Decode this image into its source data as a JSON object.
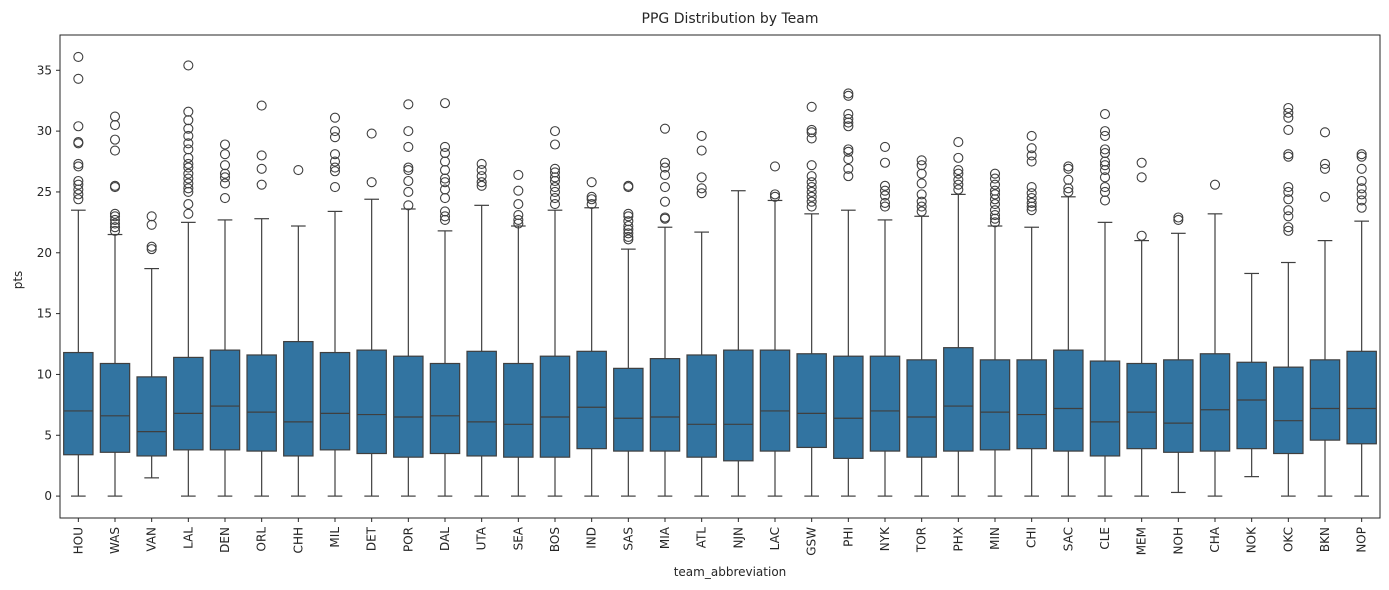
{
  "chart_data": {
    "type": "box",
    "title": "PPG Distribution by Team",
    "xlabel": "team_abbreviation",
    "ylabel": "pts",
    "ylim": [
      -1.8,
      37.9
    ],
    "yticks": [
      0,
      5,
      10,
      15,
      20,
      25,
      30,
      35
    ],
    "box_color": "#3274a1",
    "line_color": "#3f3f3f",
    "teams": [
      {
        "name": "HOU",
        "q1": 3.4,
        "median": 7.0,
        "q3": 11.8,
        "wlow": 0,
        "whigh": 23.5,
        "outliers": [
          24.4,
          24.8,
          25.2,
          25.6,
          25.9,
          27.1,
          27.3,
          29.0,
          29.1,
          30.4,
          34.3,
          36.1
        ]
      },
      {
        "name": "WAS",
        "q1": 3.6,
        "median": 6.6,
        "q3": 10.9,
        "wlow": 0,
        "whigh": 21.5,
        "outliers": [
          21.8,
          22.1,
          22.4,
          22.7,
          23.0,
          23.2,
          25.4,
          25.5,
          28.4,
          29.3,
          30.5,
          31.2
        ]
      },
      {
        "name": "VAN",
        "q1": 3.3,
        "median": 5.3,
        "q3": 9.8,
        "wlow": 1.5,
        "whigh": 18.7,
        "outliers": [
          20.3,
          20.5,
          22.3,
          23.0
        ]
      },
      {
        "name": "LAL",
        "q1": 3.8,
        "median": 6.8,
        "q3": 11.4,
        "wlow": 0,
        "whigh": 22.5,
        "outliers": [
          23.2,
          24.0,
          25.0,
          25.3,
          25.7,
          26.1,
          26.5,
          27.0,
          27.3,
          27.8,
          28.5,
          29.0,
          29.6,
          30.2,
          30.9,
          31.6,
          35.4
        ]
      },
      {
        "name": "DEN",
        "q1": 3.8,
        "median": 7.4,
        "q3": 12.0,
        "wlow": 0,
        "whigh": 22.7,
        "outliers": [
          24.5,
          25.7,
          26.2,
          26.5,
          27.2,
          28.1,
          28.9
        ]
      },
      {
        "name": "ORL",
        "q1": 3.7,
        "median": 6.9,
        "q3": 11.6,
        "wlow": 0,
        "whigh": 22.8,
        "outliers": [
          25.6,
          26.9,
          28.0,
          32.1
        ]
      },
      {
        "name": "CHH",
        "q1": 3.3,
        "median": 6.1,
        "q3": 12.7,
        "wlow": 0,
        "whigh": 22.2,
        "outliers": [
          26.8
        ]
      },
      {
        "name": "MIL",
        "q1": 3.8,
        "median": 6.8,
        "q3": 11.8,
        "wlow": 0,
        "whigh": 23.4,
        "outliers": [
          25.4,
          26.7,
          27.0,
          27.5,
          28.1,
          29.5,
          30.0,
          31.1
        ]
      },
      {
        "name": "DET",
        "q1": 3.5,
        "median": 6.7,
        "q3": 12.0,
        "wlow": 0,
        "whigh": 24.4,
        "outliers": [
          25.8,
          29.8
        ]
      },
      {
        "name": "POR",
        "q1": 3.2,
        "median": 6.5,
        "q3": 11.5,
        "wlow": 0,
        "whigh": 23.6,
        "outliers": [
          23.9,
          25.0,
          25.9,
          26.8,
          27.0,
          28.7,
          30.0,
          32.2
        ]
      },
      {
        "name": "DAL",
        "q1": 3.5,
        "median": 6.6,
        "q3": 10.9,
        "wlow": 0,
        "whigh": 21.8,
        "outliers": [
          22.7,
          23.0,
          23.4,
          24.5,
          25.2,
          25.8,
          26.1,
          26.8,
          27.5,
          28.2,
          28.7,
          32.3
        ]
      },
      {
        "name": "UTA",
        "q1": 3.3,
        "median": 6.1,
        "q3": 11.9,
        "wlow": 0,
        "whigh": 23.9,
        "outliers": [
          25.5,
          25.8,
          26.3,
          26.8,
          27.3
        ]
      },
      {
        "name": "SEA",
        "q1": 3.2,
        "median": 5.9,
        "q3": 10.9,
        "wlow": 0,
        "whigh": 22.2,
        "outliers": [
          22.4,
          22.7,
          23.1,
          24.0,
          25.1,
          26.4
        ]
      },
      {
        "name": "BOS",
        "q1": 3.2,
        "median": 6.5,
        "q3": 11.5,
        "wlow": 0,
        "whigh": 23.5,
        "outliers": [
          24.0,
          24.5,
          25.0,
          25.4,
          25.9,
          26.2,
          26.6,
          26.9,
          28.9,
          30.0
        ]
      },
      {
        "name": "IND",
        "q1": 3.9,
        "median": 7.3,
        "q3": 11.9,
        "wlow": 0,
        "whigh": 23.7,
        "outliers": [
          24.0,
          24.4,
          24.6,
          25.8
        ]
      },
      {
        "name": "SAS",
        "q1": 3.7,
        "median": 6.4,
        "q3": 10.5,
        "wlow": 0,
        "whigh": 20.3,
        "outliers": [
          21.1,
          21.3,
          21.6,
          21.9,
          22.2,
          22.6,
          23.0,
          23.2,
          25.4,
          25.5
        ]
      },
      {
        "name": "MIA",
        "q1": 3.7,
        "median": 6.5,
        "q3": 11.3,
        "wlow": 0,
        "whigh": 22.1,
        "outliers": [
          22.8,
          22.9,
          24.2,
          25.4,
          26.4,
          27.0,
          27.4,
          30.2
        ]
      },
      {
        "name": "ATL",
        "q1": 3.2,
        "median": 5.9,
        "q3": 11.6,
        "wlow": 0,
        "whigh": 21.7,
        "outliers": [
          24.9,
          25.3,
          26.2,
          28.4,
          29.6
        ]
      },
      {
        "name": "NJN",
        "q1": 2.9,
        "median": 5.9,
        "q3": 12.0,
        "wlow": 0,
        "whigh": 25.1,
        "outliers": []
      },
      {
        "name": "LAC",
        "q1": 3.7,
        "median": 7.0,
        "q3": 12.0,
        "wlow": 0,
        "whigh": 24.3,
        "outliers": [
          24.6,
          24.8,
          27.1
        ]
      },
      {
        "name": "GSW",
        "q1": 4.0,
        "median": 6.8,
        "q3": 11.7,
        "wlow": 0,
        "whigh": 23.2,
        "outliers": [
          23.8,
          24.2,
          24.6,
          25.0,
          25.4,
          25.8,
          26.3,
          27.2,
          29.4,
          29.9,
          30.1,
          32.0
        ]
      },
      {
        "name": "PHI",
        "q1": 3.1,
        "median": 6.4,
        "q3": 11.5,
        "wlow": 0,
        "whigh": 23.5,
        "outliers": [
          26.3,
          26.9,
          27.7,
          28.3,
          28.5,
          30.4,
          30.7,
          31.0,
          31.4,
          32.9,
          33.1
        ]
      },
      {
        "name": "NYK",
        "q1": 3.7,
        "median": 7.0,
        "q3": 11.5,
        "wlow": 0,
        "whigh": 22.7,
        "outliers": [
          23.8,
          24.1,
          24.7,
          25.1,
          25.5,
          27.4,
          28.7
        ]
      },
      {
        "name": "TOR",
        "q1": 3.2,
        "median": 6.5,
        "q3": 11.2,
        "wlow": 0,
        "whigh": 23.0,
        "outliers": [
          23.4,
          23.8,
          24.2,
          24.8,
          25.7,
          26.5,
          27.2,
          27.6
        ]
      },
      {
        "name": "PHX",
        "q1": 3.7,
        "median": 7.4,
        "q3": 12.2,
        "wlow": 0,
        "whigh": 24.8,
        "outliers": [
          25.2,
          25.6,
          26.0,
          26.5,
          26.8,
          27.8,
          29.1
        ]
      },
      {
        "name": "MIN",
        "q1": 3.8,
        "median": 6.9,
        "q3": 11.2,
        "wlow": 0,
        "whigh": 22.2,
        "outliers": [
          22.5,
          22.8,
          23.1,
          23.5,
          24.0,
          24.4,
          24.8,
          25.1,
          25.6,
          26.1,
          26.5
        ]
      },
      {
        "name": "CHI",
        "q1": 3.9,
        "median": 6.7,
        "q3": 11.2,
        "wlow": 0,
        "whigh": 22.1,
        "outliers": [
          23.5,
          23.8,
          24.1,
          24.5,
          24.9,
          25.4,
          27.5,
          28.0,
          28.6,
          29.6
        ]
      },
      {
        "name": "SAC",
        "q1": 3.7,
        "median": 7.2,
        "q3": 12.0,
        "wlow": 0,
        "whigh": 24.6,
        "outliers": [
          25.0,
          25.3,
          26.0,
          26.9,
          27.1
        ]
      },
      {
        "name": "CLE",
        "q1": 3.3,
        "median": 6.1,
        "q3": 11.1,
        "wlow": 0,
        "whigh": 22.5,
        "outliers": [
          24.3,
          25.0,
          25.4,
          26.2,
          26.8,
          27.2,
          27.5,
          28.2,
          28.5,
          29.6,
          30.0,
          31.4
        ]
      },
      {
        "name": "MEM",
        "q1": 3.9,
        "median": 6.9,
        "q3": 10.9,
        "wlow": 0,
        "whigh": 21.0,
        "outliers": [
          21.4,
          26.2,
          27.4
        ]
      },
      {
        "name": "NOH",
        "q1": 3.6,
        "median": 6.0,
        "q3": 11.2,
        "wlow": 0.3,
        "whigh": 21.6,
        "outliers": [
          22.7,
          22.9
        ]
      },
      {
        "name": "CHA",
        "q1": 3.7,
        "median": 7.1,
        "q3": 11.7,
        "wlow": 0,
        "whigh": 23.2,
        "outliers": [
          25.6
        ]
      },
      {
        "name": "NOK",
        "q1": 3.9,
        "median": 7.9,
        "q3": 11.0,
        "wlow": 1.6,
        "whigh": 18.3,
        "outliers": []
      },
      {
        "name": "OKC",
        "q1": 3.5,
        "median": 6.2,
        "q3": 10.6,
        "wlow": 0,
        "whigh": 19.2,
        "outliers": [
          21.8,
          22.1,
          23.0,
          23.5,
          24.4,
          25.0,
          25.4,
          27.9,
          28.1,
          30.1,
          31.1,
          31.5,
          31.9
        ]
      },
      {
        "name": "BKN",
        "q1": 4.6,
        "median": 7.2,
        "q3": 11.2,
        "wlow": 0,
        "whigh": 21.0,
        "outliers": [
          24.6,
          26.9,
          27.3,
          29.9
        ]
      },
      {
        "name": "NOP",
        "q1": 4.3,
        "median": 7.2,
        "q3": 11.9,
        "wlow": 0,
        "whigh": 22.6,
        "outliers": [
          23.7,
          24.3,
          24.8,
          25.3,
          25.9,
          26.9,
          27.9,
          28.1
        ]
      }
    ]
  }
}
